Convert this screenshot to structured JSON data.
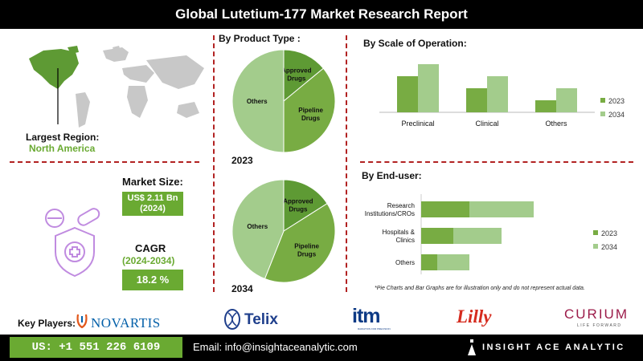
{
  "title": "Global Lutetium-177 Market Research Report",
  "region": {
    "label": "Largest Region:",
    "value": "North America"
  },
  "market_size": {
    "label": "Market Size:",
    "value": "US$  2.11 Bn",
    "year": "(2024)"
  },
  "cagr": {
    "label": "CAGR",
    "period": "(2024-2034)",
    "value": "18.2 %"
  },
  "product_type": {
    "title": "By  Product Type :",
    "year_2023": "2023",
    "year_2034": "2034"
  },
  "scale_title": "By Scale of Operation:",
  "enduser_title": "By End-user:",
  "disclaimer": "*Pie Charts and Bar Graphs are for illustration only and do not represent actual data.",
  "key_players": {
    "label": "Key Players:",
    "novartis": "NOVARTIS",
    "telix": "Telix",
    "itm": "itm",
    "itm_tagline": "RADIATION FOR PRECISION",
    "lilly": "Lilly",
    "curium": "CURIUM",
    "curium_tagline": "LIFE FORWARD"
  },
  "footer": {
    "phone": "US: +1 551 226 6109",
    "email": "Email: info@insightaceanalytic.com",
    "brand": "INSIGHT ACE ANALYTIC"
  },
  "colors": {
    "dark_green": "#5e9a34",
    "mid_green": "#78ac43",
    "light_green": "#a3cc8c",
    "accent": "#6aaa32",
    "red_dash": "#b22222"
  },
  "chart_data": [
    {
      "type": "pie",
      "title": "2023",
      "labels": [
        "Approved Drugs",
        "Pipeline Drugs",
        "Others"
      ],
      "values": [
        14,
        36,
        50
      ]
    },
    {
      "type": "pie",
      "title": "2034",
      "labels": [
        "Approved Drugs",
        "Pipeline Drugs",
        "Others"
      ],
      "values": [
        16,
        40,
        44
      ]
    },
    {
      "type": "bar",
      "title": "By Scale of Operation:",
      "categories": [
        "Preclinical",
        "Clinical",
        "Others"
      ],
      "series": [
        {
          "name": "2023",
          "values": [
            6,
            4,
            2
          ]
        },
        {
          "name": "2034",
          "values": [
            8,
            6,
            4
          ]
        }
      ],
      "ylim": [
        0,
        8
      ],
      "legend": "right"
    },
    {
      "type": "bar",
      "orientation": "horizontal",
      "stacked": true,
      "title": "By End-user:",
      "categories": [
        "Research Institutions/CROs",
        "Hospitals & Clinics",
        "Others"
      ],
      "series": [
        {
          "name": "2023",
          "values": [
            3,
            2,
            1
          ]
        },
        {
          "name": "2034",
          "values": [
            4,
            3,
            2
          ]
        }
      ],
      "legend": "right"
    }
  ]
}
